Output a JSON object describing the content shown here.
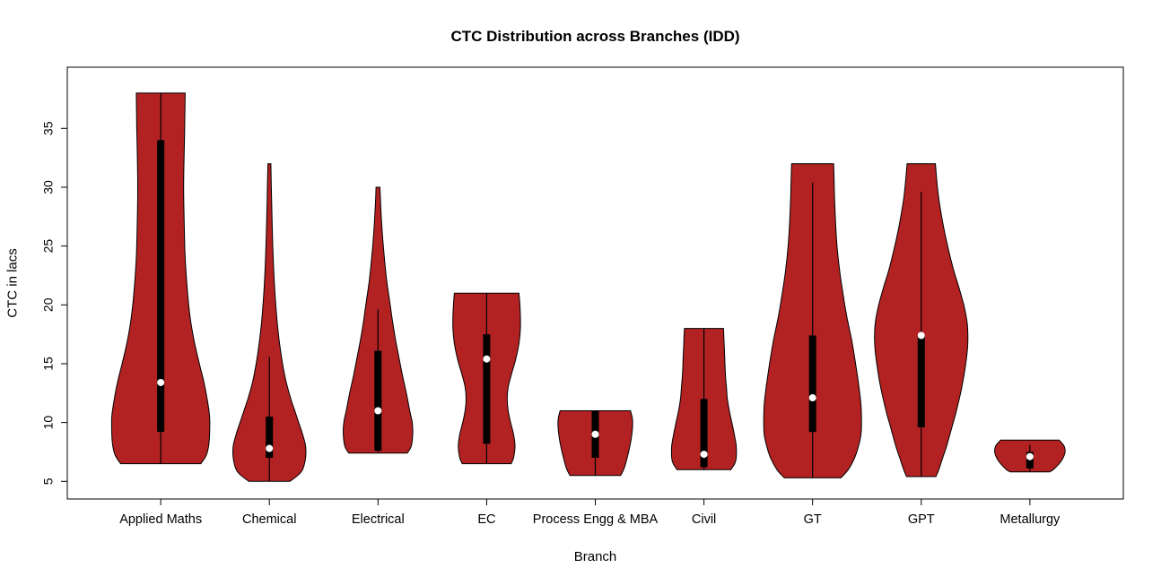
{
  "figure": {
    "background": "#FFFFFF"
  },
  "chart_data": {
    "type": "violin",
    "title": "CTC Distribution across Branches (IDD)",
    "xlabel": "Branch",
    "ylabel": "CTC in lacs",
    "ylim": [
      3.5,
      40.2
    ],
    "yticks": [
      5,
      10,
      15,
      20,
      25,
      30,
      35
    ],
    "grid": false,
    "legend": "none",
    "violin_fill": "#B22222",
    "violin_stroke": "#000000",
    "box_color": "#000000",
    "whisker_color": "#000000",
    "median_dot_color": "#FFFFFF",
    "categories": [
      "Applied Maths",
      "Chemical",
      "Electrical",
      "EC",
      "Process Engg & MBA",
      "Civil",
      "GT",
      "GPT",
      "Metallurgy"
    ],
    "violins": [
      {
        "branch": "Applied Maths",
        "min": 6.5,
        "max": 38,
        "q1": 9.2,
        "q3": 34,
        "median": 13.4,
        "whisker_low": 6.5,
        "whisker_high": 38,
        "shape": [
          [
            6.5,
            0.82
          ],
          [
            7.2,
            0.93
          ],
          [
            8,
            0.98
          ],
          [
            9,
            1.0
          ],
          [
            10.5,
            1.0
          ],
          [
            12,
            0.95
          ],
          [
            13.5,
            0.88
          ],
          [
            15,
            0.79
          ],
          [
            17,
            0.68
          ],
          [
            19,
            0.6
          ],
          [
            21,
            0.55
          ],
          [
            24,
            0.5
          ],
          [
            27,
            0.48
          ],
          [
            30,
            0.47
          ],
          [
            33,
            0.48
          ],
          [
            35,
            0.49
          ],
          [
            38,
            0.5
          ]
        ]
      },
      {
        "branch": "Chemical",
        "min": 5,
        "max": 32,
        "q1": 7,
        "q3": 10.5,
        "median": 7.8,
        "whisker_low": 5,
        "whisker_high": 15.6,
        "shape": [
          [
            5,
            0.42
          ],
          [
            5.5,
            0.58
          ],
          [
            6,
            0.68
          ],
          [
            7,
            0.74
          ],
          [
            8,
            0.74
          ],
          [
            9,
            0.68
          ],
          [
            10,
            0.6
          ],
          [
            11,
            0.52
          ],
          [
            12,
            0.44
          ],
          [
            13.5,
            0.34
          ],
          [
            15,
            0.27
          ],
          [
            17,
            0.2
          ],
          [
            19,
            0.15
          ],
          [
            22,
            0.1
          ],
          [
            25,
            0.07
          ],
          [
            28,
            0.05
          ],
          [
            30,
            0.04
          ],
          [
            32,
            0.03
          ]
        ]
      },
      {
        "branch": "Electrical",
        "min": 7.4,
        "max": 30,
        "q1": 7.6,
        "q3": 16.1,
        "median": 11,
        "whisker_low": 7.5,
        "whisker_high": 19.6,
        "shape": [
          [
            7.4,
            0.6
          ],
          [
            8,
            0.68
          ],
          [
            9,
            0.71
          ],
          [
            10,
            0.7
          ],
          [
            11,
            0.65
          ],
          [
            12.5,
            0.58
          ],
          [
            14,
            0.5
          ],
          [
            15.5,
            0.43
          ],
          [
            17,
            0.36
          ],
          [
            18.5,
            0.3
          ],
          [
            20,
            0.25
          ],
          [
            22,
            0.18
          ],
          [
            24,
            0.13
          ],
          [
            26,
            0.09
          ],
          [
            28,
            0.06
          ],
          [
            30,
            0.04
          ]
        ]
      },
      {
        "branch": "EC",
        "min": 6.5,
        "max": 21,
        "q1": 8.2,
        "q3": 17.5,
        "median": 15.4,
        "whisker_low": 6.5,
        "whisker_high": 21,
        "shape": [
          [
            6.5,
            0.5
          ],
          [
            7,
            0.55
          ],
          [
            8,
            0.58
          ],
          [
            9,
            0.55
          ],
          [
            10,
            0.49
          ],
          [
            11,
            0.44
          ],
          [
            12,
            0.42
          ],
          [
            13,
            0.44
          ],
          [
            14,
            0.5
          ],
          [
            15,
            0.57
          ],
          [
            16,
            0.63
          ],
          [
            17,
            0.67
          ],
          [
            18,
            0.69
          ],
          [
            19,
            0.69
          ],
          [
            20,
            0.68
          ],
          [
            21,
            0.66
          ]
        ]
      },
      {
        "branch": "Process Engg & MBA",
        "min": 5.5,
        "max": 11,
        "q1": 7,
        "q3": 11,
        "median": 9,
        "whisker_low": 5.5,
        "whisker_high": 11,
        "shape": [
          [
            5.5,
            0.52
          ],
          [
            6,
            0.58
          ],
          [
            6.5,
            0.62
          ],
          [
            7.5,
            0.68
          ],
          [
            8.5,
            0.73
          ],
          [
            9.5,
            0.76
          ],
          [
            10.3,
            0.76
          ],
          [
            11,
            0.72
          ]
        ]
      },
      {
        "branch": "Civil",
        "min": 6,
        "max": 18,
        "q1": 6.2,
        "q3": 12,
        "median": 7.3,
        "whisker_low": 6,
        "whisker_high": 18,
        "shape": [
          [
            6,
            0.55
          ],
          [
            6.5,
            0.63
          ],
          [
            7,
            0.66
          ],
          [
            8,
            0.66
          ],
          [
            9,
            0.62
          ],
          [
            10,
            0.57
          ],
          [
            11,
            0.52
          ],
          [
            12,
            0.48
          ],
          [
            13,
            0.46
          ],
          [
            14,
            0.44
          ],
          [
            15,
            0.43
          ],
          [
            16,
            0.42
          ],
          [
            17,
            0.41
          ],
          [
            18,
            0.4
          ]
        ]
      },
      {
        "branch": "GT",
        "min": 5.3,
        "max": 32,
        "q1": 9.2,
        "q3": 17.4,
        "median": 12.1,
        "whisker_low": 5.3,
        "whisker_high": 30.4,
        "shape": [
          [
            5.3,
            0.58
          ],
          [
            6,
            0.73
          ],
          [
            7,
            0.86
          ],
          [
            8,
            0.94
          ],
          [
            9,
            0.99
          ],
          [
            10,
            1.0
          ],
          [
            11.5,
            0.99
          ],
          [
            13,
            0.95
          ],
          [
            15,
            0.88
          ],
          [
            17,
            0.8
          ],
          [
            19,
            0.7
          ],
          [
            21,
            0.62
          ],
          [
            23,
            0.55
          ],
          [
            25,
            0.5
          ],
          [
            27,
            0.47
          ],
          [
            29,
            0.45
          ],
          [
            30.5,
            0.44
          ],
          [
            32,
            0.43
          ]
        ]
      },
      {
        "branch": "GPT",
        "min": 5.4,
        "max": 32,
        "q1": 9.6,
        "q3": 17.5,
        "median": 17.4,
        "whisker_low": 5.4,
        "whisker_high": 29.6,
        "shape": [
          [
            5.4,
            0.3
          ],
          [
            6,
            0.36
          ],
          [
            7,
            0.44
          ],
          [
            8,
            0.52
          ],
          [
            9.5,
            0.62
          ],
          [
            11,
            0.72
          ],
          [
            13,
            0.83
          ],
          [
            15,
            0.91
          ],
          [
            16.5,
            0.95
          ],
          [
            18,
            0.95
          ],
          [
            19,
            0.92
          ],
          [
            20,
            0.87
          ],
          [
            21.5,
            0.77
          ],
          [
            23,
            0.66
          ],
          [
            25,
            0.54
          ],
          [
            27,
            0.44
          ],
          [
            29,
            0.36
          ],
          [
            30.5,
            0.32
          ],
          [
            32,
            0.29
          ]
        ]
      },
      {
        "branch": "Metallurgy",
        "min": 5.8,
        "max": 8.5,
        "q1": 6.1,
        "q3": 7.5,
        "median": 7.1,
        "whisker_low": 5.8,
        "whisker_high": 8.1,
        "shape": [
          [
            5.8,
            0.4
          ],
          [
            6,
            0.48
          ],
          [
            6.5,
            0.6
          ],
          [
            7,
            0.68
          ],
          [
            7.5,
            0.72
          ],
          [
            8,
            0.7
          ],
          [
            8.5,
            0.6
          ]
        ]
      }
    ]
  }
}
